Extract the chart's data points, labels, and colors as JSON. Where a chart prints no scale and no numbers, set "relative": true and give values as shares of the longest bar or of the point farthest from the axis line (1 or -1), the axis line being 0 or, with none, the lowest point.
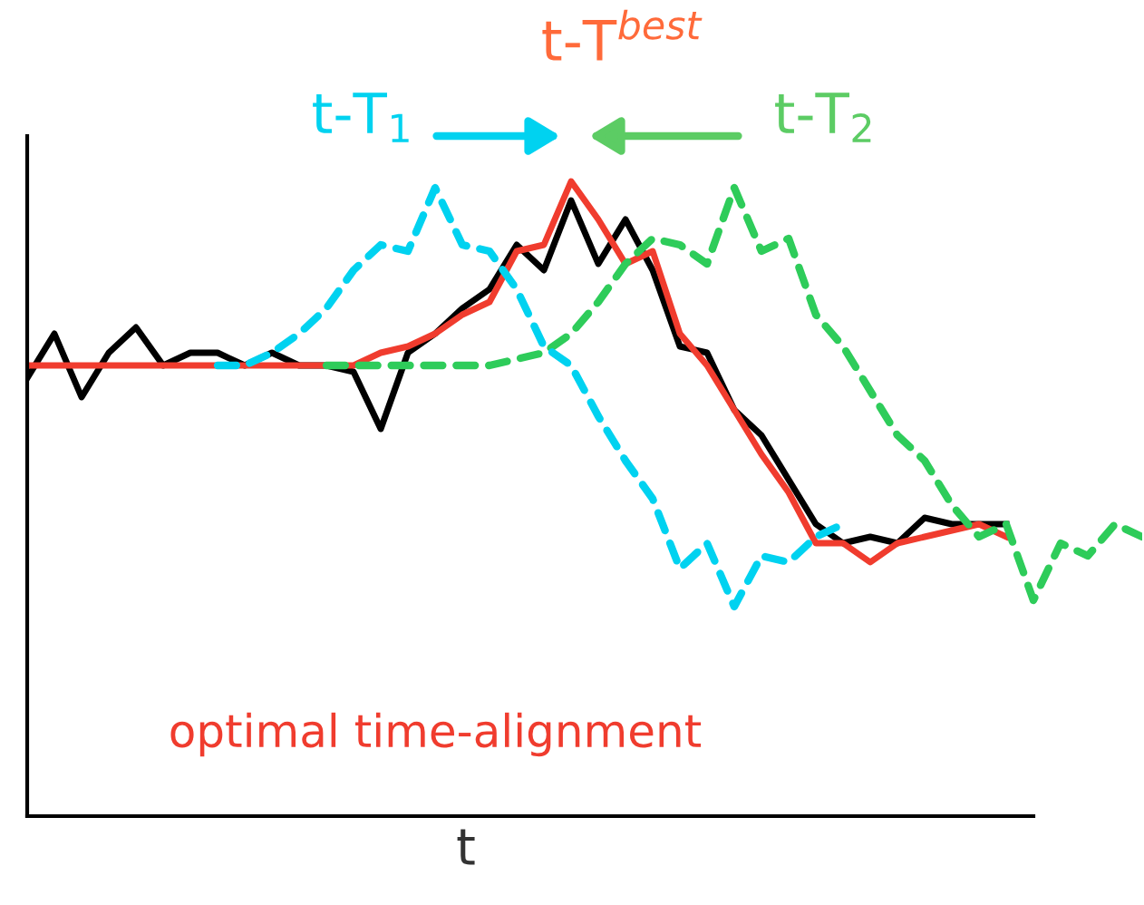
{
  "chart_data": {
    "type": "line",
    "relative": true,
    "xlabel": "t",
    "categories": [
      null,
      null,
      null,
      null,
      null,
      null,
      null,
      null,
      null,
      null,
      null,
      null,
      null,
      null,
      null,
      null,
      null,
      null,
      null,
      null,
      null,
      null,
      null,
      null,
      null,
      null,
      null,
      null,
      null,
      null,
      null,
      null,
      null,
      null,
      null,
      null,
      null,
      null,
      null,
      null,
      null,
      null
    ],
    "series": [
      {
        "color": "#2ecc5a",
        "line_style": "dashed",
        "values": [
          null,
          null,
          null,
          null,
          null,
          null,
          null,
          null,
          null,
          null,
          null,
          0.71,
          0.71,
          0.71,
          0.71,
          0.71,
          0.71,
          0.71,
          0.72,
          0.73,
          0.76,
          0.81,
          0.87,
          0.91,
          0.9,
          0.87,
          0.99,
          0.89,
          0.91,
          0.79,
          0.74,
          0.67,
          0.6,
          0.56,
          0.49,
          0.44,
          0.46,
          0.34,
          0.43,
          0.41,
          0.46,
          0.44
        ]
      },
      {
        "color": "#00d2f0",
        "line_style": "dashed",
        "values": [
          null,
          null,
          null,
          null,
          null,
          null,
          null,
          0.71,
          0.71,
          0.73,
          0.76,
          0.8,
          0.86,
          0.9,
          0.89,
          0.99,
          0.9,
          0.89,
          0.83,
          0.74,
          0.71,
          0.63,
          0.56,
          0.5,
          0.39,
          0.43,
          0.33,
          0.41,
          0.4,
          0.44,
          0.46,
          null,
          null,
          null,
          null,
          null,
          null,
          null,
          null,
          null,
          null,
          null
        ]
      },
      {
        "color": "#000000",
        "line_style": "solid",
        "values": [
          0.69,
          0.76,
          0.66,
          0.73,
          0.77,
          0.71,
          0.73,
          0.73,
          0.71,
          0.73,
          0.71,
          0.71,
          0.7,
          0.61,
          0.73,
          0.76,
          0.8,
          0.83,
          0.9,
          0.86,
          0.97,
          0.87,
          0.94,
          0.86,
          0.74,
          0.73,
          0.64,
          0.6,
          0.53,
          0.46,
          0.43,
          0.44,
          0.43,
          0.47,
          0.46,
          0.46,
          0.46,
          null,
          null,
          null,
          null,
          null
        ]
      },
      {
        "color": "#f03c2e",
        "line_style": "solid",
        "values": [
          0.71,
          0.71,
          0.71,
          0.71,
          0.71,
          0.71,
          0.71,
          0.71,
          0.71,
          0.71,
          0.71,
          0.71,
          0.71,
          0.73,
          0.74,
          0.76,
          0.79,
          0.81,
          0.89,
          0.9,
          1.0,
          0.94,
          0.87,
          0.89,
          0.76,
          0.71,
          0.64,
          0.57,
          0.51,
          0.43,
          0.43,
          0.4,
          0.43,
          0.44,
          0.45,
          0.46,
          0.44,
          null,
          null,
          null,
          null,
          null
        ]
      }
    ],
    "annotations": [
      "t-T$_{1}$",
      "t-T$_{2}$",
      "t-T$^{best}$",
      "optimal time-alignment"
    ]
  }
}
